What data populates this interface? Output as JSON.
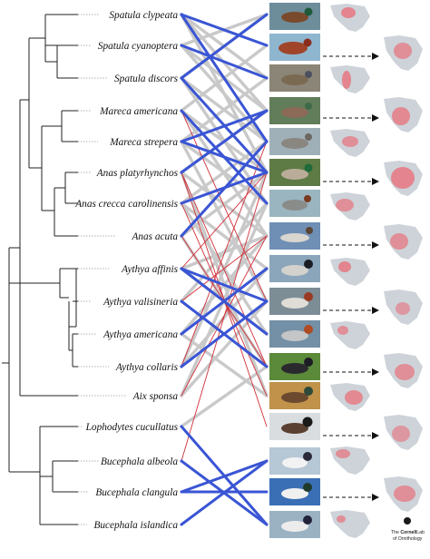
{
  "species": [
    "Spatula clypeata",
    "Spatula cyanoptera",
    "Spatula discors",
    "Mareca americana",
    "Mareca strepera",
    "Anas platyrhynchos",
    "Anas crecca carolinensis",
    "Anas acuta",
    "Aythya affinis",
    "Aythya valisineria",
    "Aythya americana",
    "Aythya collaris",
    "Aix sponsa",
    "Lophodytes cucullatus",
    "Bucephala albeola",
    "Bucephala clangula",
    "Bucephala islandica"
  ],
  "credit": {
    "line1_a": "The ",
    "line1_b": "Cornell",
    "line1_c": "Lab",
    "line2": "of Ornithology"
  },
  "colors": {
    "blue_link": "#3a55d4",
    "gray_link": "#c9c9c9",
    "red_link": "#d0303a",
    "range_fill": "#e8707a",
    "land": "#cdd3d9"
  }
}
